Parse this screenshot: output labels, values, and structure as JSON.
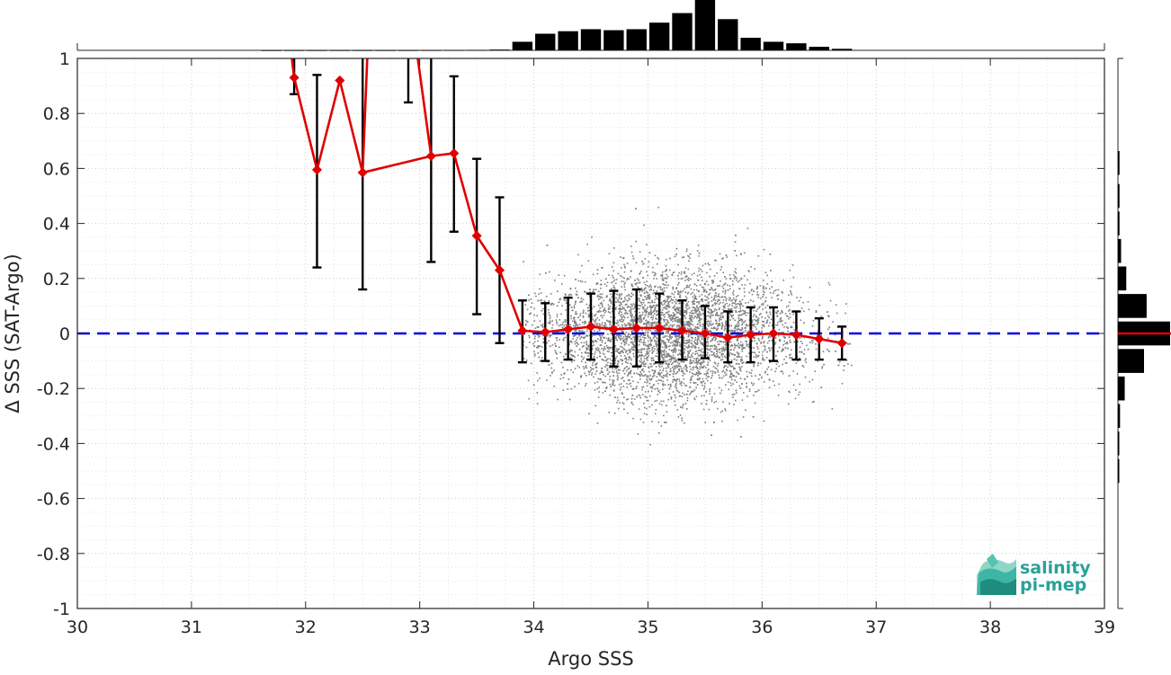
{
  "chart_data": {
    "type": "scatter",
    "xlabel": "Argo SSS",
    "ylabel": "Δ SSS (SAT-Argo)",
    "xlim": [
      30,
      39
    ],
    "ylim": [
      -1,
      1
    ],
    "xticks": [
      30,
      31,
      32,
      33,
      34,
      35,
      36,
      37,
      38,
      39
    ],
    "yticks": [
      -1,
      -0.8,
      -0.6,
      -0.4,
      -0.2,
      0,
      0.2,
      0.4,
      0.6,
      0.8,
      1
    ],
    "ytick_labels": [
      "-1",
      "-0.8",
      "-0.6",
      "-0.4",
      "-0.2",
      "0",
      "0.2",
      "0.4",
      "0.6",
      "0.8",
      "1"
    ],
    "grid": true,
    "reference_line": {
      "y": 0,
      "style": "dashed",
      "color": "#0000dd"
    },
    "scatter_cloud": {
      "description_color": "#808080",
      "center_x": 35.2,
      "center_y": 0.0,
      "x_range": [
        33.9,
        36.8
      ],
      "y_spread_std": 0.11
    },
    "binned_mean": {
      "color": "#e00000",
      "x": [
        31.9,
        32.1,
        32.3,
        32.5,
        33.1,
        33.3,
        33.5,
        33.7,
        33.9,
        34.1,
        34.3,
        34.5,
        34.7,
        34.9,
        35.1,
        35.3,
        35.5,
        35.7,
        35.9,
        36.1,
        36.3,
        36.5,
        36.7
      ],
      "y": [
        0.93,
        0.595,
        0.92,
        0.585,
        0.645,
        0.655,
        0.355,
        0.23,
        0.01,
        0.005,
        0.015,
        0.025,
        0.015,
        0.02,
        0.02,
        0.01,
        0.0,
        -0.015,
        -0.005,
        0.0,
        -0.005,
        -0.02,
        -0.035
      ],
      "line_segments_offplot": [
        {
          "from": [
            31.85,
            1.1
          ],
          "to": [
            31.9,
            0.93
          ]
        },
        {
          "from": [
            32.5,
            0.585
          ],
          "to": [
            32.55,
            1.1
          ]
        },
        {
          "from": [
            32.95,
            1.1
          ],
          "to": [
            33.1,
            0.645
          ]
        }
      ]
    },
    "error_bars": [
      {
        "x": 31.9,
        "low": 0.87,
        "high": 1.05
      },
      {
        "x": 32.1,
        "low": 0.24,
        "high": 0.94
      },
      {
        "x": 32.5,
        "low": 0.16,
        "high": 1.05
      },
      {
        "x": 32.9,
        "low": 0.84,
        "high": 1.05
      },
      {
        "x": 33.1,
        "low": 0.26,
        "high": 1.05
      },
      {
        "x": 33.3,
        "low": 0.37,
        "high": 0.935
      },
      {
        "x": 33.5,
        "low": 0.07,
        "high": 0.635
      },
      {
        "x": 33.7,
        "low": -0.035,
        "high": 0.495
      },
      {
        "x": 33.9,
        "low": -0.105,
        "high": 0.12
      },
      {
        "x": 34.1,
        "low": -0.1,
        "high": 0.11
      },
      {
        "x": 34.3,
        "low": -0.095,
        "high": 0.13
      },
      {
        "x": 34.5,
        "low": -0.095,
        "high": 0.145
      },
      {
        "x": 34.7,
        "low": -0.12,
        "high": 0.155
      },
      {
        "x": 34.9,
        "low": -0.12,
        "high": 0.16
      },
      {
        "x": 35.1,
        "low": -0.105,
        "high": 0.145
      },
      {
        "x": 35.3,
        "low": -0.095,
        "high": 0.12
      },
      {
        "x": 35.5,
        "low": -0.09,
        "high": 0.1
      },
      {
        "x": 35.7,
        "low": -0.105,
        "high": 0.08
      },
      {
        "x": 35.9,
        "low": -0.105,
        "high": 0.095
      },
      {
        "x": 36.1,
        "low": -0.1,
        "high": 0.095
      },
      {
        "x": 36.3,
        "low": -0.095,
        "high": 0.08
      },
      {
        "x": 36.5,
        "low": -0.095,
        "high": 0.055
      },
      {
        "x": 36.7,
        "low": -0.095,
        "high": 0.025
      }
    ],
    "top_histogram": {
      "bin_width": 0.2,
      "bins_x": [
        31.7,
        31.9,
        32.1,
        32.3,
        32.5,
        32.7,
        32.9,
        33.1,
        33.3,
        33.5,
        33.7,
        33.9,
        34.1,
        34.3,
        34.5,
        34.7,
        34.9,
        35.1,
        35.3,
        35.5,
        35.7,
        35.9,
        36.1,
        36.3,
        36.5,
        36.7
      ],
      "relative_counts": [
        0.002,
        0.003,
        0.003,
        0.003,
        0.003,
        0.003,
        0.003,
        0.004,
        0.005,
        0.007,
        0.015,
        0.17,
        0.33,
        0.38,
        0.42,
        0.4,
        0.42,
        0.55,
        0.74,
        1.0,
        0.62,
        0.25,
        0.17,
        0.14,
        0.07,
        0.03
      ]
    },
    "right_histogram": {
      "color": "#000000",
      "median_line_color": "#e00000",
      "bins_y": [
        0.62,
        0.5,
        0.4,
        0.3,
        0.2,
        0.1,
        0.0,
        -0.1,
        -0.2,
        -0.3,
        -0.4,
        -0.5
      ],
      "relative_counts": [
        0.03,
        0.03,
        0.03,
        0.06,
        0.16,
        0.55,
        1.0,
        0.5,
        0.13,
        0.04,
        0.02,
        0.02
      ]
    }
  },
  "logo": {
    "line1": "salinity",
    "line2": "pi-mep",
    "color": "#2aa198"
  }
}
